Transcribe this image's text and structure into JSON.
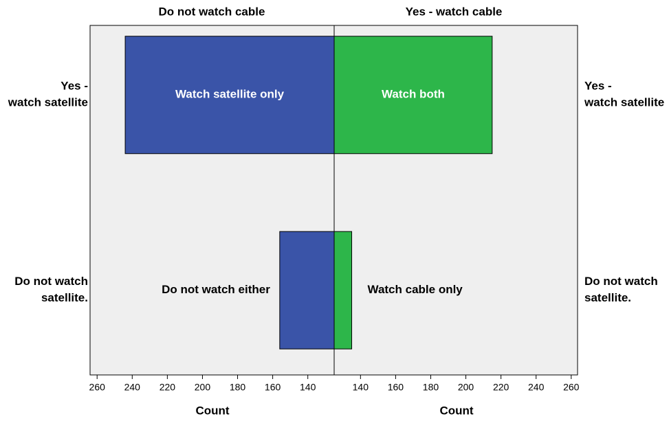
{
  "chart_data": {
    "type": "pyramid",
    "categories": [
      [
        "Yes -",
        "watch satellite"
      ],
      [
        "Do not watch",
        "satellite."
      ]
    ],
    "series": [
      {
        "name": "Do not watch cable",
        "color": "#3a54a8",
        "values": [
          244,
          156
        ],
        "value_labels": [
          "Watch satellite only",
          "Do not watch either"
        ]
      },
      {
        "name": "Yes - watch cable",
        "color": "#2db64a",
        "values": [
          215,
          135
        ],
        "value_labels": [
          "Watch both",
          "Watch cable only"
        ]
      }
    ],
    "xlabel": "Count",
    "xlim": [
      125,
      264
    ],
    "xticks": [
      140,
      160,
      180,
      200,
      220,
      240,
      260
    ]
  }
}
